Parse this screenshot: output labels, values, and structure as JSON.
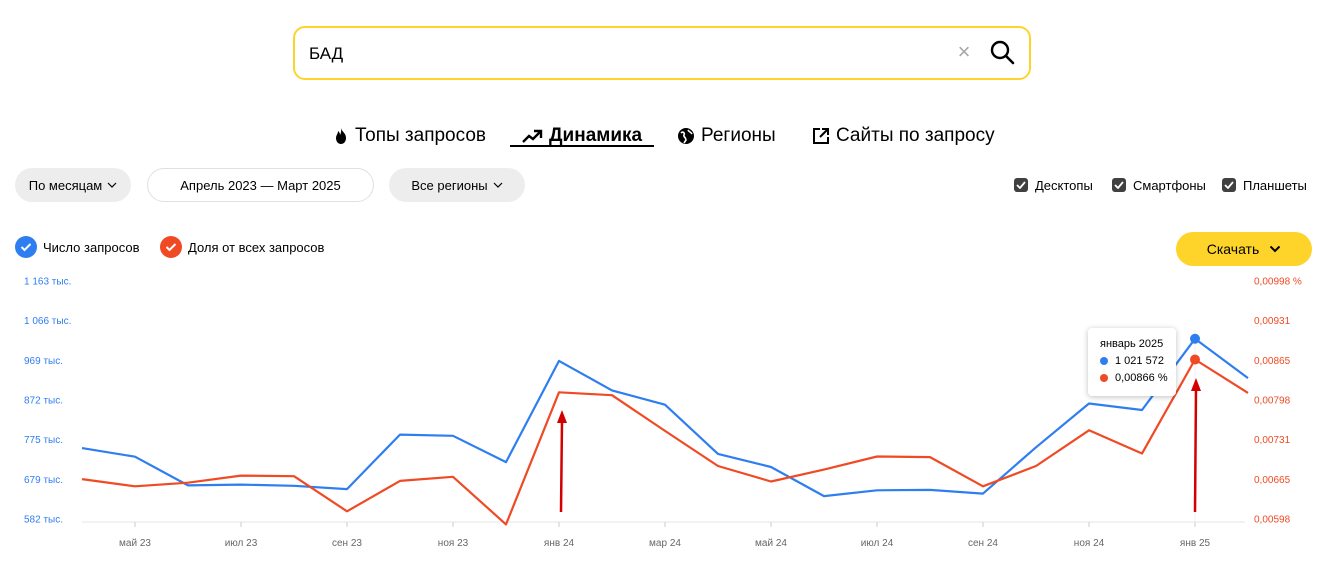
{
  "search": {
    "value": "БАД"
  },
  "tabs": [
    {
      "label": "Топы запросов",
      "icon": "flame-icon"
    },
    {
      "label": "Динамика",
      "icon": "trend-icon",
      "active": true
    },
    {
      "label": "Регионы",
      "icon": "globe-icon"
    },
    {
      "label": "Сайты по запросу",
      "icon": "external-link-icon"
    }
  ],
  "filters": {
    "period_mode": "По месяцам",
    "date_range": "Апрель 2023 — Март 2025",
    "region": "Все регионы"
  },
  "devices": [
    {
      "label": "Десктопы",
      "checked": true
    },
    {
      "label": "Смартфоны",
      "checked": true
    },
    {
      "label": "Планшеты",
      "checked": true
    }
  ],
  "legend": {
    "count_label": "Число запросов",
    "share_label": "Доля от всех запросов"
  },
  "download_label": "Скачать",
  "colors": {
    "count": "#2f7ef0",
    "share": "#f04a24",
    "accent": "#fed42b"
  },
  "tooltip": {
    "title": "январь 2025",
    "count": "1 021 572",
    "share": "0,00866 %"
  },
  "chart_data": {
    "type": "line",
    "x": [
      "апр 23",
      "май 23",
      "июн 23",
      "июл 23",
      "авг 23",
      "сен 23",
      "окт 23",
      "ноя 23",
      "дек 23",
      "янв 24",
      "фев 24",
      "мар 24",
      "апр 24",
      "май 24",
      "июн 24",
      "июл 24",
      "авг 24",
      "сен 24",
      "окт 24",
      "ноя 24",
      "дек 24",
      "янв 25",
      "фев 25"
    ],
    "x_tick_labels": [
      "май 23",
      "июл 23",
      "сен 23",
      "ноя 23",
      "янв 24",
      "мар 24",
      "май 24",
      "июл 24",
      "сен 24",
      "ноя 24",
      "янв 25"
    ],
    "y_left_ticks": [
      "1 163 тыс.",
      "1 066 тыс.",
      "969 тыс.",
      "872 тыс.",
      "775 тыс.",
      "679 тыс.",
      "582 тыс."
    ],
    "y_right_ticks": [
      "0,00998 %",
      "0,00931",
      "0,00865",
      "0,00798",
      "0,00731",
      "0,00665",
      "0,00598"
    ],
    "ylim_left": [
      582,
      1163
    ],
    "ylim_right": [
      0.00598,
      0.00998
    ],
    "series": [
      {
        "name": "Число запросов",
        "axis": "left",
        "values": [
          755,
          734,
          664,
          666,
          663,
          655,
          788,
          785,
          721,
          968,
          896,
          861,
          741,
          709,
          638,
          652,
          653,
          644,
          757,
          864,
          848,
          1022,
          926
        ]
      },
      {
        "name": "Доля от всех запросов",
        "axis": "right",
        "values": [
          0.00665,
          0.00653,
          0.00659,
          0.00671,
          0.0067,
          0.00611,
          0.00662,
          0.00669,
          0.00589,
          0.00811,
          0.00806,
          0.00746,
          0.00687,
          0.00661,
          0.00681,
          0.00703,
          0.00702,
          0.00653,
          0.00687,
          0.00747,
          0.00708,
          0.00866,
          0.0081
        ]
      }
    ],
    "annotations": [
      {
        "type": "arrow",
        "at": "янв 24",
        "color": "#d40000"
      },
      {
        "type": "arrow",
        "at": "янв 25",
        "color": "#d40000"
      }
    ]
  }
}
